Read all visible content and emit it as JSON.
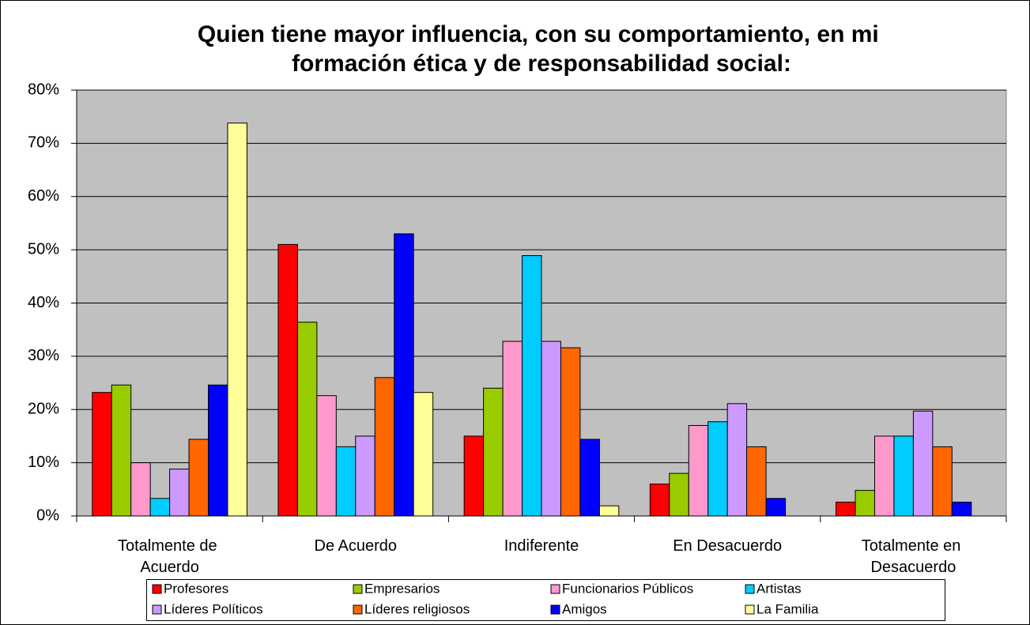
{
  "chart_data": {
    "type": "bar",
    "title": "Quien tiene mayor influencia, con su comportamiento, en mi formación ética y de responsabilidad social:",
    "categories": [
      "Totalmente de Acuerdo",
      "De Acuerdo",
      "Indiferente",
      "En Desacuerdo",
      "Totalmente en Desacuerdo"
    ],
    "series": [
      {
        "name": "Profesores",
        "color": "#ff0000",
        "values": [
          23.2,
          51,
          15,
          6,
          2.6
        ]
      },
      {
        "name": "Empresarios",
        "color": "#99cc00",
        "values": [
          24.6,
          36.4,
          24,
          8,
          4.8
        ]
      },
      {
        "name": "Funcionarios Públicos",
        "color": "#ff99cc",
        "values": [
          10,
          22.6,
          32.8,
          17,
          15
        ]
      },
      {
        "name": "Artistas",
        "color": "#00ccff",
        "values": [
          3.3,
          13,
          48.9,
          17.7,
          15
        ]
      },
      {
        "name": "Líderes Políticos",
        "color": "#cc99ff",
        "values": [
          8.8,
          15,
          32.8,
          21.1,
          19.7
        ]
      },
      {
        "name": "Líderes religiosos",
        "color": "#ff6600",
        "values": [
          14.4,
          26,
          31.6,
          13,
          13
        ]
      },
      {
        "name": "Amigos",
        "color": "#0000ff",
        "values": [
          24.6,
          53,
          14.4,
          3.3,
          2.6
        ]
      },
      {
        "name": "La Familia",
        "color": "#ffff99",
        "values": [
          73.8,
          23.2,
          1.9,
          0,
          0
        ]
      }
    ],
    "ylim": [
      0,
      80
    ],
    "yticks": [
      {
        "value": 0,
        "label": "0%"
      },
      {
        "value": 10,
        "label": "10%"
      },
      {
        "value": 20,
        "label": "20%"
      },
      {
        "value": 30,
        "label": "30%"
      },
      {
        "value": 40,
        "label": "40%"
      },
      {
        "value": 50,
        "label": "50%"
      },
      {
        "value": 60,
        "label": "60%"
      },
      {
        "value": 70,
        "label": "70%"
      },
      {
        "value": 80,
        "label": "80%"
      }
    ],
    "grid": true,
    "legend": "bottom",
    "plot_background": "#c0c0c0"
  }
}
